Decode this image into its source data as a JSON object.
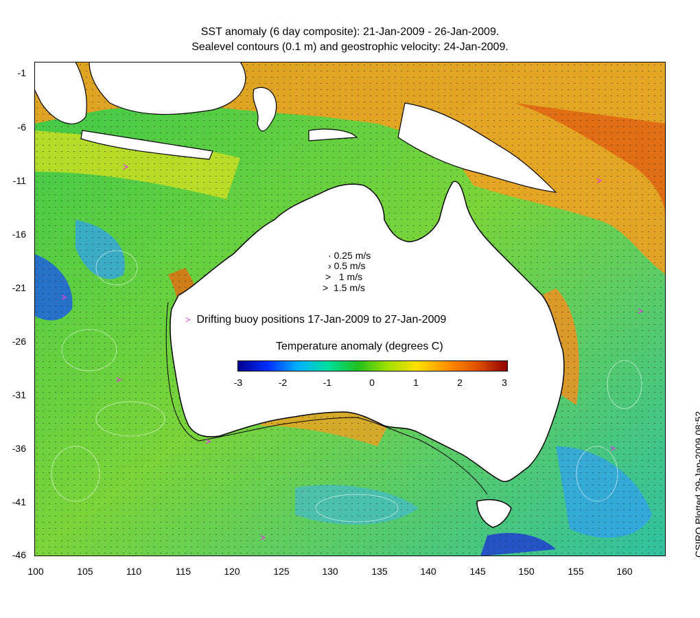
{
  "title": {
    "line1": "SST anomaly (6 day composite): 21-Jan-2009 - 26-Jan-2009.",
    "line2": "Sealevel contours (0.1 m) and geostrophic velocity: 24-Jan-2009."
  },
  "axes": {
    "x_ticks": [
      "100",
      "105",
      "110",
      "115",
      "120",
      "125",
      "130",
      "135",
      "140",
      "145",
      "150",
      "155",
      "160"
    ],
    "y_ticks": [
      "-1",
      "-6",
      "-11",
      "-16",
      "-21",
      "-26",
      "-31",
      "-36",
      "-41",
      "-46"
    ],
    "lon_range": [
      100,
      164
    ],
    "lat_range": [
      -46,
      0
    ]
  },
  "velocity_legend": {
    "items": [
      "0.25 m/s",
      "0.5 m/s",
      "1 m/s",
      "1.5 m/s"
    ]
  },
  "buoy_legend": {
    "symbol": ">",
    "label": "Drifting buoy positions 17-Jan-2009 to 27-Jan-2009",
    "color": "#e040e0"
  },
  "colorbar": {
    "title": "Temperature anomaly (degrees C)",
    "ticks": [
      "-3",
      "-2",
      "-1",
      "0",
      "1",
      "2",
      "3"
    ],
    "colors": [
      "#00008f",
      "#0030ff",
      "#00b0ff",
      "#00e0a0",
      "#20c020",
      "#a0e000",
      "#ffe000",
      "#ff9000",
      "#e05000",
      "#900000"
    ]
  },
  "side_label": "CSIRO Plotted 29-Jan-2009 08:52"
}
